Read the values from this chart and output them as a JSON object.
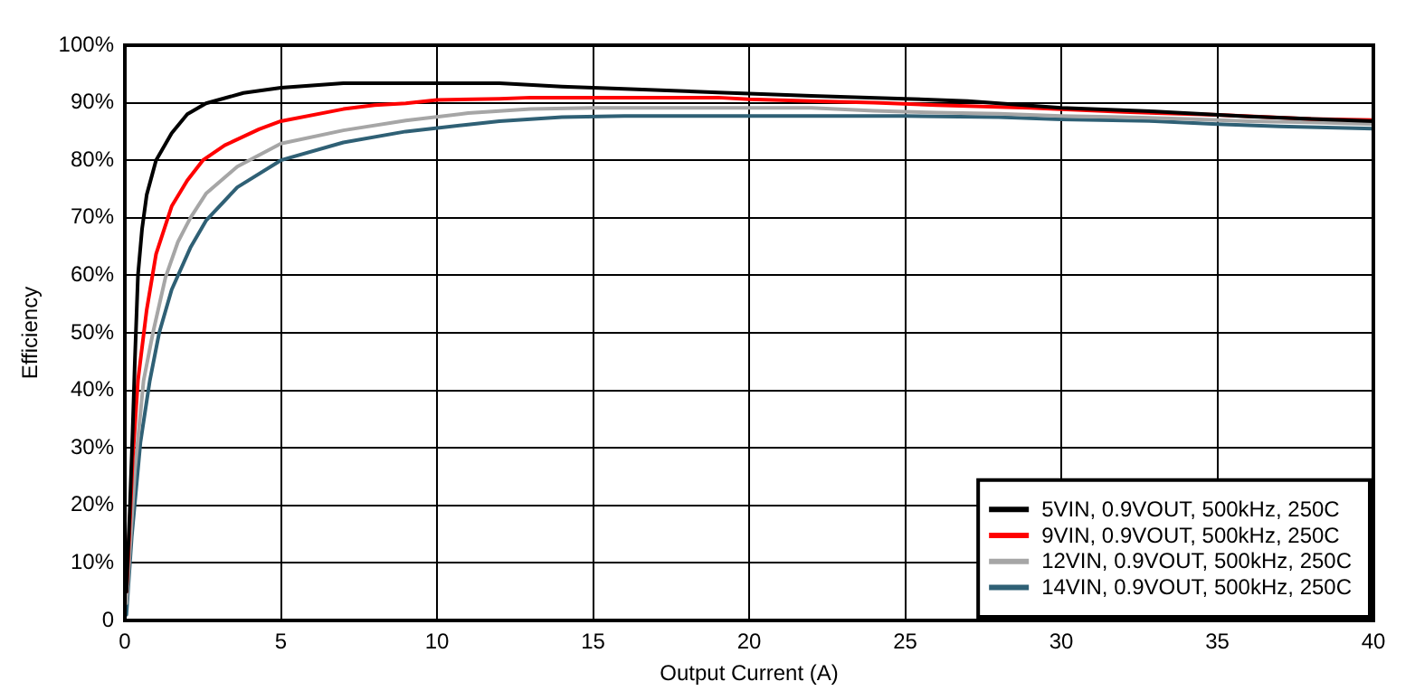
{
  "chart_data": {
    "type": "line",
    "xlabel": "Output Current (A)",
    "ylabel": "Efficiency",
    "xlim": [
      0,
      40
    ],
    "xticks": [
      0,
      5,
      10,
      15,
      20,
      25,
      30,
      35,
      40
    ],
    "ylim": [
      0,
      100
    ],
    "yticks": [
      {
        "value": 0,
        "label": "0"
      },
      {
        "value": 10,
        "label": "10%"
      },
      {
        "value": 20,
        "label": "20%"
      },
      {
        "value": 30,
        "label": "30%"
      },
      {
        "value": 40,
        "label": "40%"
      },
      {
        "value": 50,
        "label": "50%"
      },
      {
        "value": 60,
        "label": "60%"
      },
      {
        "value": 70,
        "label": "70%"
      },
      {
        "value": 80,
        "label": "80%"
      },
      {
        "value": 90,
        "label": "90%"
      },
      {
        "value": 100,
        "label": "100%"
      }
    ],
    "grid": true,
    "legend": "bottom right",
    "series": [
      {
        "name": "5VIN, 0.9VOUT, 500kHz, 250C",
        "color": "#000000",
        "x": [
          0.05,
          0.15,
          0.25,
          0.32,
          0.42,
          0.55,
          0.7,
          1,
          1.5,
          2,
          2.6,
          3.8,
          5,
          7,
          12,
          14,
          16,
          19,
          22,
          25,
          27,
          30,
          33,
          36,
          38,
          40
        ],
        "values": [
          5,
          18,
          33,
          45,
          60,
          68,
          74,
          80,
          84.7,
          88,
          89.9,
          91.7,
          92.6,
          93.4,
          93.4,
          92.8,
          92.4,
          91.8,
          91.2,
          90.7,
          90.3,
          89.1,
          88.5,
          87.6,
          87.2,
          86.8
        ]
      },
      {
        "name": "9VIN, 0.9VOUT, 500kHz, 250C",
        "color": "#ff0000",
        "x": [
          0.05,
          0.1,
          0.25,
          0.42,
          0.7,
          1,
          1.5,
          2,
          2.5,
          3.2,
          4.3,
          5,
          7,
          8,
          9,
          10,
          12,
          13,
          19,
          20,
          22,
          24,
          26,
          29,
          32,
          35,
          38,
          40
        ],
        "values": [
          5,
          10,
          28,
          41.7,
          54,
          63.7,
          72,
          76.5,
          80,
          82.6,
          85.4,
          86.8,
          88.9,
          89.6,
          89.9,
          90.5,
          90.7,
          90.9,
          90.9,
          90.6,
          90.3,
          90,
          89.6,
          89.1,
          88.4,
          87.9,
          87.2,
          87
        ]
      },
      {
        "name": "12VIN, 0.9VOUT, 500kHz, 250C",
        "color": "#a6a6a6",
        "x": [
          0.05,
          0.1,
          0.32,
          0.6,
          0.9,
          1.3,
          1.7,
          2.1,
          2.6,
          3.6,
          5,
          7,
          9,
          11,
          13,
          15,
          22,
          24,
          26,
          28,
          30,
          32,
          34,
          36,
          38,
          40
        ],
        "values": [
          3,
          7,
          26,
          41.7,
          50,
          59.6,
          65.8,
          70,
          74.2,
          78.9,
          82.9,
          85.2,
          86.9,
          88.2,
          88.9,
          89.1,
          89.1,
          88.6,
          88.3,
          88.1,
          87.7,
          87.5,
          87.2,
          86.8,
          86.6,
          86.3
        ]
      },
      {
        "name": "14VIN, 0.9VOUT, 500kHz, 250C",
        "color": "#2f6075",
        "x": [
          0.05,
          0.22,
          0.5,
          0.8,
          1.1,
          1.5,
          2.1,
          2.6,
          3.6,
          5,
          7,
          9,
          11,
          12,
          14,
          16,
          25,
          28,
          30,
          33,
          35,
          37,
          40
        ],
        "values": [
          1,
          14.5,
          31,
          41.7,
          50,
          57.5,
          64.8,
          69.5,
          75.3,
          80,
          83.1,
          85,
          86.2,
          86.8,
          87.5,
          87.7,
          87.7,
          87.5,
          87.1,
          86.8,
          86.3,
          85.9,
          85.5
        ]
      }
    ]
  }
}
